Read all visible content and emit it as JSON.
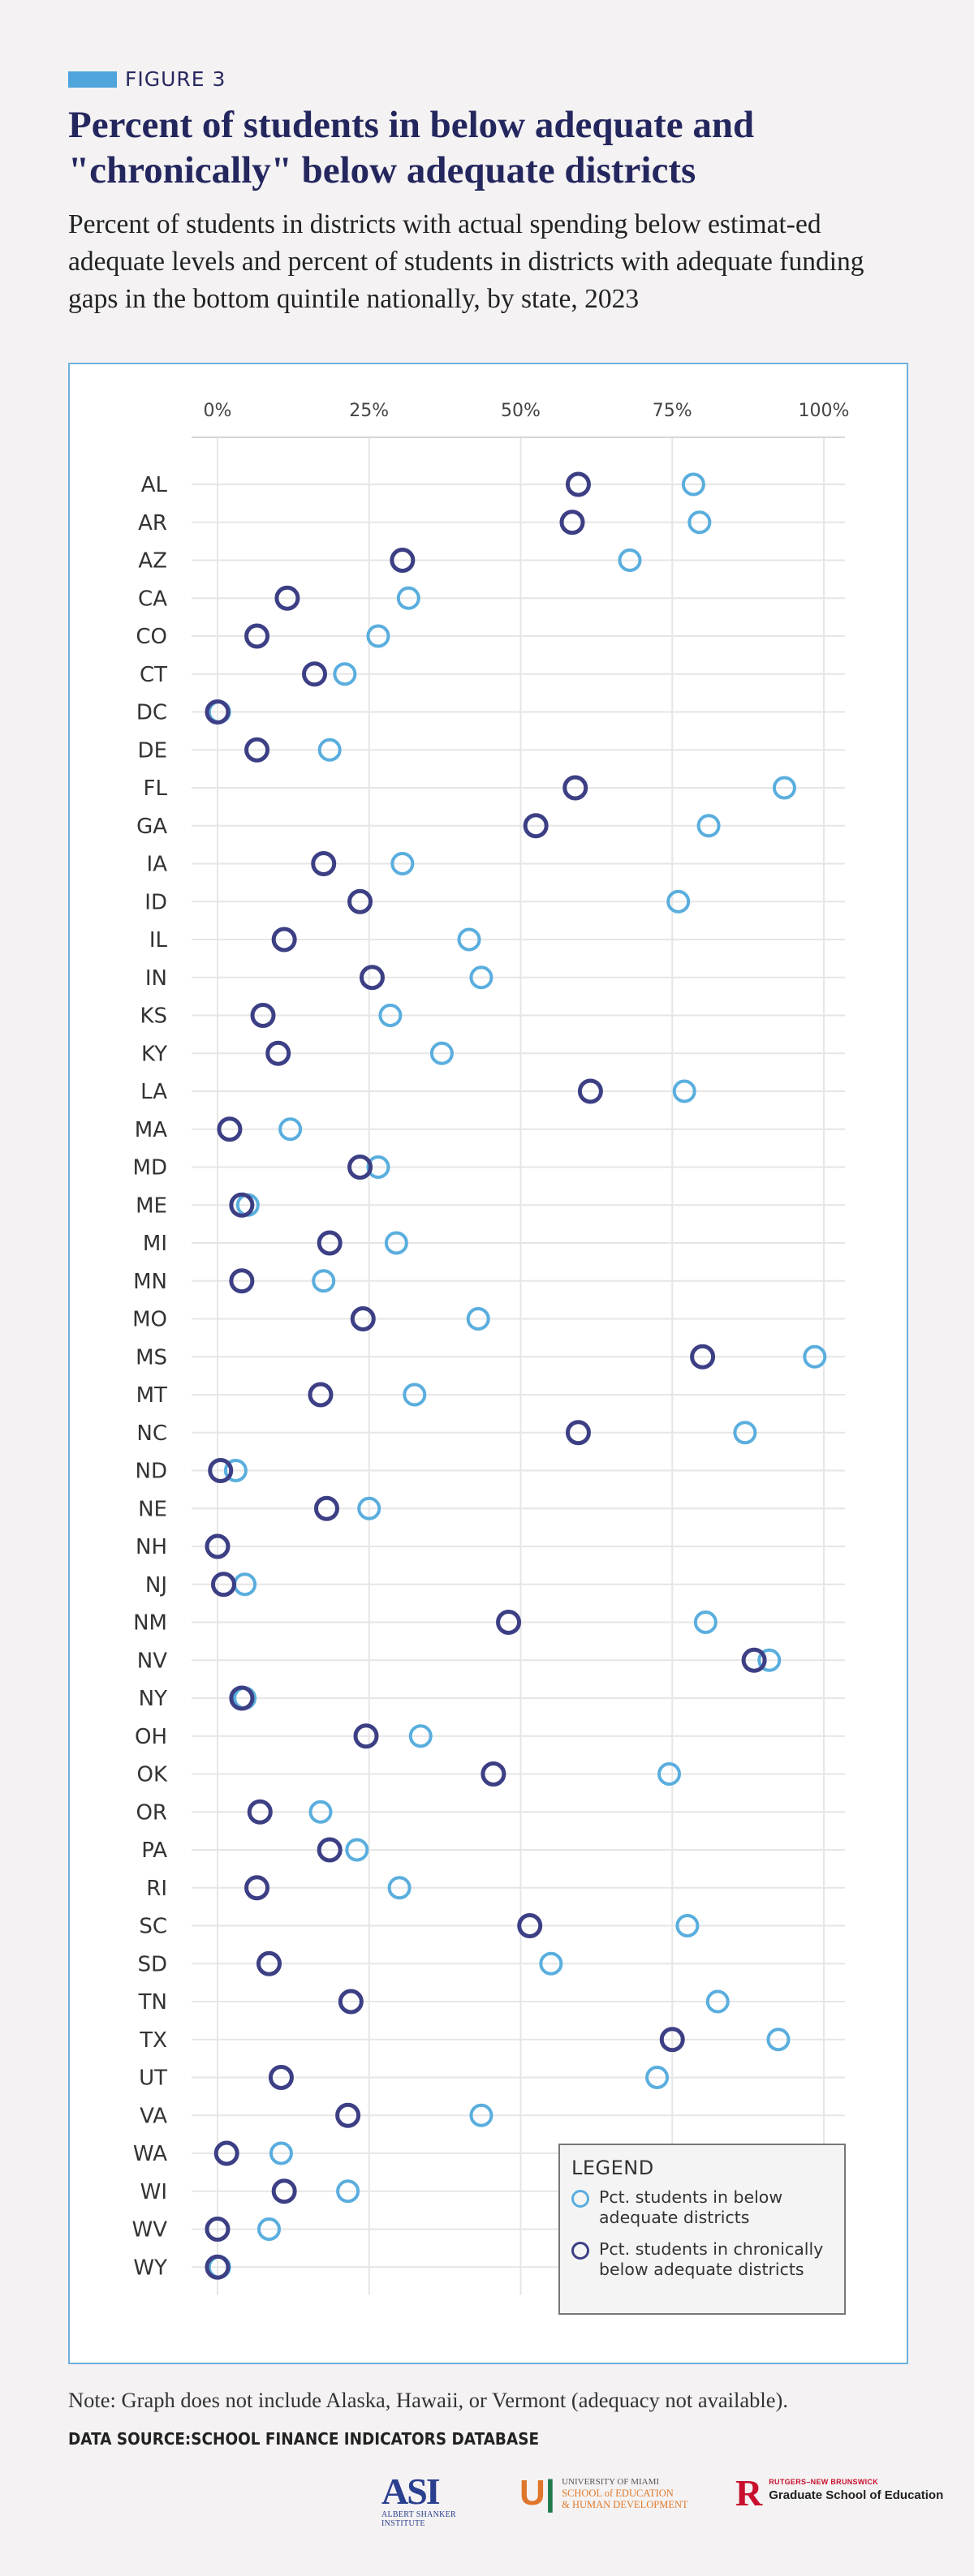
{
  "header": {
    "figure_label": "FIGURE 3",
    "title": "Percent of students in below adequate and \"chronically\" below adequate districts",
    "subtitle": "Percent of students in districts with actual spending below estimat-ed adequate levels and percent of students in districts with adequate funding gaps in the bottom quintile nationally, by state, 2023"
  },
  "colors": {
    "accent": "#4fa4dc",
    "title": "#24275e",
    "below_adequate": "#5aaede",
    "chronically_below": "#3d3f85",
    "grid": "#e6e6e6"
  },
  "chart_data": {
    "type": "scatter",
    "orientation": "dot-plot",
    "x_ticks": [
      "0%",
      "25%",
      "50%",
      "75%",
      "100%"
    ],
    "xlim": [
      0,
      100
    ],
    "grid": true,
    "legend_position": "bottom-right",
    "categories": [
      "AL",
      "AR",
      "AZ",
      "CA",
      "CO",
      "CT",
      "DC",
      "DE",
      "FL",
      "GA",
      "IA",
      "ID",
      "IL",
      "IN",
      "KS",
      "KY",
      "LA",
      "MA",
      "MD",
      "ME",
      "MI",
      "MN",
      "MO",
      "MS",
      "MT",
      "NC",
      "ND",
      "NE",
      "NH",
      "NJ",
      "NM",
      "NV",
      "NY",
      "OH",
      "OK",
      "OR",
      "PA",
      "RI",
      "SC",
      "SD",
      "TN",
      "TX",
      "UT",
      "VA",
      "WA",
      "WI",
      "WV",
      "WY"
    ],
    "series": [
      {
        "name": "Pct. students in below adequate districts",
        "values": [
          78.5,
          79.5,
          68,
          31.5,
          26.5,
          21,
          0.3,
          18.5,
          93.5,
          81,
          30.5,
          76,
          41.5,
          43.5,
          28.5,
          37,
          77,
          12,
          26.5,
          5,
          29.5,
          17.5,
          43,
          98.5,
          32.5,
          87,
          3,
          25,
          0,
          4.5,
          80.5,
          91,
          4.5,
          33.5,
          74.5,
          17,
          23,
          30,
          77.5,
          55,
          82.5,
          92.5,
          72.5,
          43.5,
          10.5,
          21.5,
          8.5,
          0.3
        ]
      },
      {
        "name": "Pct. students in chronically below adequate districts",
        "values": [
          59.5,
          58.5,
          30.5,
          11.5,
          6.5,
          16,
          0,
          6.5,
          59,
          52.5,
          17.5,
          23.5,
          11,
          25.5,
          7.5,
          10,
          61.5,
          2,
          23.5,
          4,
          18.5,
          4,
          24,
          80,
          17,
          59.5,
          0.5,
          18,
          0,
          1,
          48,
          88.5,
          4,
          24.5,
          45.5,
          7,
          18.5,
          6.5,
          51.5,
          8.5,
          22,
          75,
          10.5,
          21.5,
          1.5,
          11,
          0,
          0
        ]
      }
    ]
  },
  "legend": {
    "title": "LEGEND",
    "items": [
      "Pct. students in below adequate districts",
      "Pct. students in chronically below adequate districts"
    ]
  },
  "footer": {
    "note": "Note: Graph does not include Alaska, Hawaii, or Vermont (adequacy not available).",
    "source": "DATA SOURCE:SCHOOL FINANCE INDICATORS DATABASE"
  },
  "logos": {
    "asi_letters": "ASI",
    "asi_sub": "ALBERT SHANKER INSTITUTE",
    "um_university": "UNIVERSITY OF MIAMI",
    "um_school_line1": "SCHOOL of EDUCATION",
    "um_school_line2": "& HUMAN DEVELOPMENT",
    "rutgers_small": "RUTGERS–NEW BRUNSWICK",
    "rutgers_big": "Graduate School of Education"
  }
}
